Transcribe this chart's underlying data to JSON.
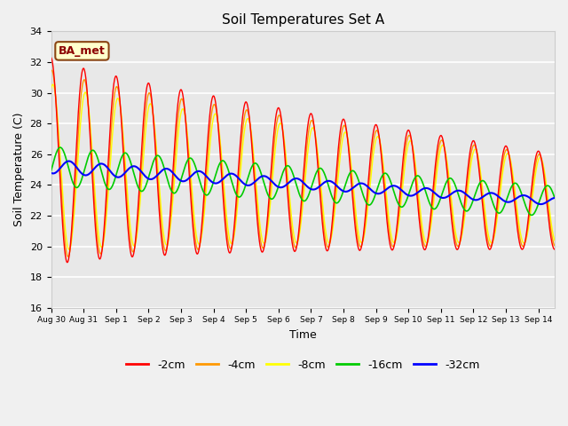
{
  "title": "Soil Temperatures Set A",
  "xlabel": "Time",
  "ylabel": "Soil Temperature (C)",
  "ylim": [
    16,
    34
  ],
  "annotation": "BA_met",
  "bg_color": "#e8e8e8",
  "fig_bg": "#f0f0f0",
  "legend": [
    "-2cm",
    "-4cm",
    "-8cm",
    "-16cm",
    "-32cm"
  ],
  "colors": [
    "#ff0000",
    "#ff9900",
    "#ffff00",
    "#00cc00",
    "#0000ff"
  ],
  "x_tick_labels": [
    "Aug 30",
    "Aug 31",
    "Sep 1",
    "Sep 2",
    "Sep 3",
    "Sep 4",
    "Sep 5",
    "Sep 6",
    "Sep 7",
    "Sep 8",
    "Sep 9",
    "Sep 10",
    "Sep 11",
    "Sep 12",
    "Sep 13",
    "Sep 14"
  ],
  "x_tick_positions": [
    0,
    1,
    2,
    3,
    4,
    5,
    6,
    7,
    8,
    9,
    10,
    11,
    12,
    13,
    14,
    15
  ]
}
